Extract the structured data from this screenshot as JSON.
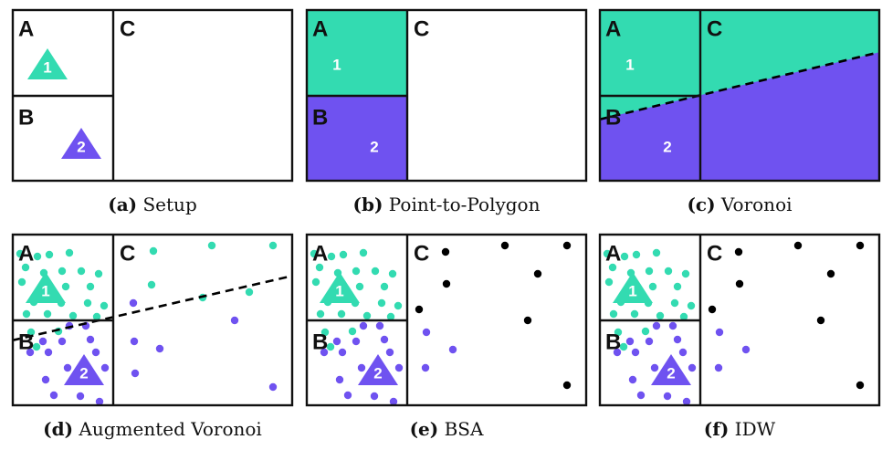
{
  "panels": [
    {
      "id": "a",
      "letter": "(a)",
      "title": "Setup",
      "region_labels": [
        "A",
        "B",
        "C"
      ],
      "point_labels": [
        "1",
        "2"
      ]
    },
    {
      "id": "b",
      "letter": "(b)",
      "title": "Point-to-Polygon",
      "region_labels": [
        "A",
        "B",
        "C"
      ],
      "point_labels": [
        "1",
        "2"
      ]
    },
    {
      "id": "c",
      "letter": "(c)",
      "title": "Voronoi",
      "region_labels": [
        "A",
        "B",
        "C"
      ],
      "point_labels": [
        "1",
        "2"
      ]
    },
    {
      "id": "d",
      "letter": "(d)",
      "title": "Augmented Voronoi",
      "region_labels": [
        "A",
        "B",
        "C"
      ],
      "point_labels": [
        "1",
        "2"
      ]
    },
    {
      "id": "e",
      "letter": "(e)",
      "title": "BSA",
      "region_labels": [
        "A",
        "B",
        "C"
      ],
      "point_labels": [
        "1",
        "2"
      ]
    },
    {
      "id": "f",
      "letter": "(f)",
      "title": "IDW",
      "region_labels": [
        "A",
        "B",
        "C"
      ],
      "point_labels": [
        "1",
        "2"
      ]
    }
  ],
  "colors": {
    "teal": "#33dbb1",
    "purple": "#6f52f0",
    "black": "#000000",
    "border": "#111111"
  }
}
